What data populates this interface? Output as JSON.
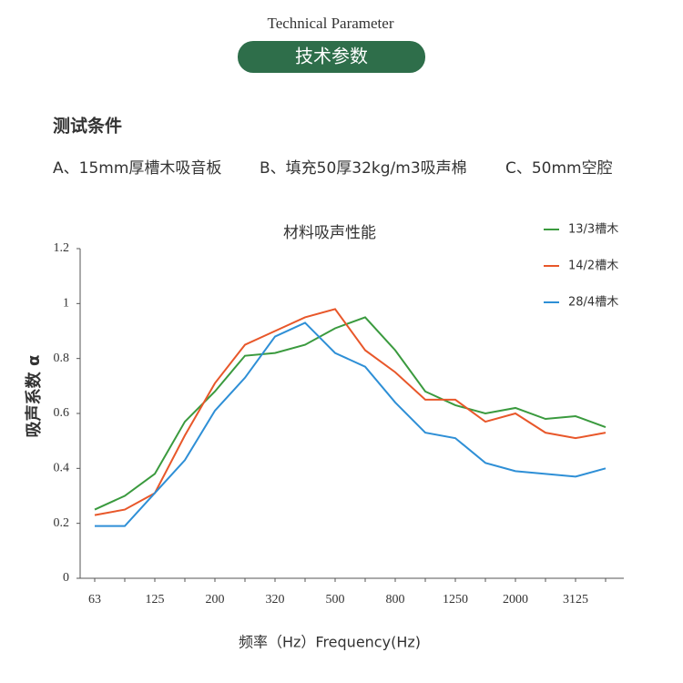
{
  "header": {
    "title": "Technical Parameter",
    "badge": "技术参数"
  },
  "conditions": {
    "heading": "测试条件",
    "items": [
      "A、15mm厚槽木吸音板",
      "B、填充50厚32kg/m3吸声棉",
      "C、50mm空腔"
    ]
  },
  "chart_data": {
    "type": "line",
    "title": "材料吸声性能",
    "y_label": "吸声系数 α",
    "x_label": "频率（Hz）Frequency(Hz)",
    "categories": [
      "63",
      null,
      "125",
      null,
      "200",
      null,
      "320",
      null,
      "500",
      null,
      "800",
      null,
      "1250",
      null,
      "2000",
      null,
      "3125",
      null
    ],
    "series": [
      {
        "name": "13/3槽木",
        "color": "#3a9a3e",
        "values": [
          0.25,
          0.3,
          0.38,
          0.57,
          0.68,
          0.81,
          0.82,
          0.85,
          0.91,
          0.95,
          0.83,
          0.68,
          0.63,
          0.6,
          0.62,
          0.58,
          0.59,
          0.55
        ]
      },
      {
        "name": "14/2槽木",
        "color": "#e8572a",
        "values": [
          0.23,
          0.25,
          0.31,
          0.52,
          0.71,
          0.85,
          0.9,
          0.95,
          0.98,
          0.83,
          0.75,
          0.65,
          0.65,
          0.57,
          0.6,
          0.53,
          0.51,
          0.53
        ]
      },
      {
        "name": "28/4槽木",
        "color": "#2e8fd6",
        "values": [
          0.19,
          0.19,
          0.31,
          0.43,
          0.61,
          0.73,
          0.88,
          0.93,
          0.82,
          0.77,
          0.64,
          0.53,
          0.51,
          0.42,
          0.39,
          0.38,
          0.37,
          0.4
        ]
      }
    ],
    "ylim": [
      0,
      1.2
    ],
    "yticks": [
      0,
      0.2,
      0.4,
      0.6,
      0.8,
      1,
      1.2
    ],
    "legend": "top-right"
  }
}
